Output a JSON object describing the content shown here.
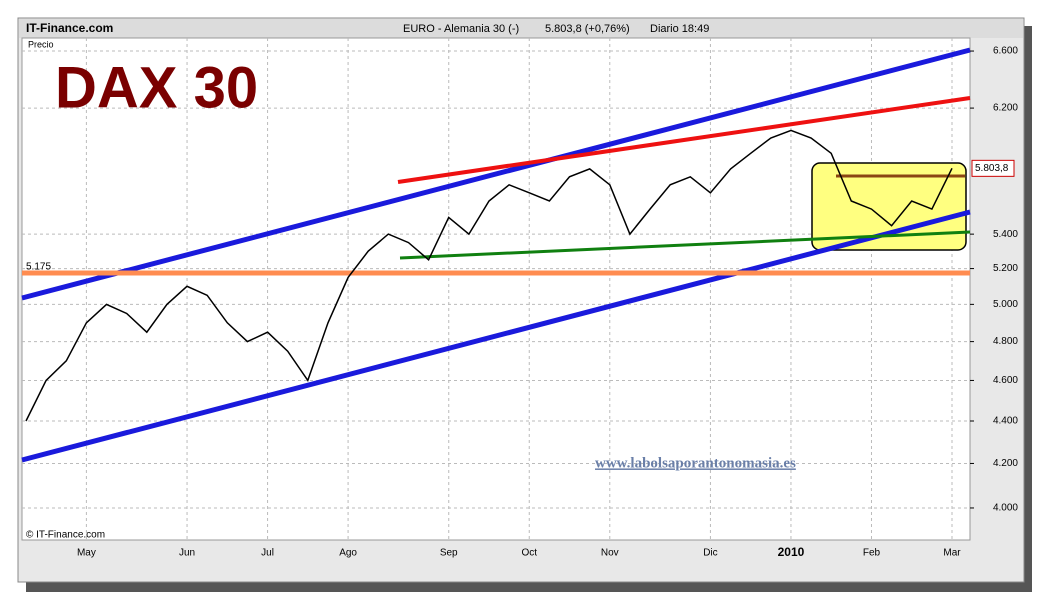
{
  "header": {
    "site": "IT-Finance.com",
    "quote": [
      "EURO - Alemania 30 (-)",
      "5.803,8 (+0,76%)",
      "Diario  18:49"
    ]
  },
  "chart_data": {
    "type": "line",
    "title": "DAX 30",
    "y_label": "Precio",
    "credit": "© IT-Finance.com",
    "watermark": "www.labolsaporantonomasia.es",
    "categories": [
      null,
      null,
      null,
      "May",
      null,
      null,
      null,
      null,
      "Jun",
      null,
      null,
      null,
      "Jul",
      null,
      null,
      null,
      "Ago",
      null,
      null,
      null,
      null,
      "Sep",
      null,
      null,
      null,
      "Oct",
      null,
      null,
      null,
      "Nov",
      null,
      null,
      null,
      null,
      "Dic",
      null,
      null,
      null,
      "2010",
      null,
      null,
      null,
      "Feb",
      null,
      null,
      null,
      "Mar"
    ],
    "values": [
      4400,
      4600,
      4700,
      4900,
      5000,
      4950,
      4850,
      5000,
      5100,
      5050,
      4900,
      4800,
      4850,
      4750,
      4600,
      4900,
      5150,
      5300,
      5400,
      5350,
      5250,
      5500,
      5400,
      5600,
      5700,
      5650,
      5600,
      5750,
      5800,
      5700,
      5400,
      5550,
      5700,
      5750,
      5650,
      5800,
      5900,
      6000,
      6050,
      6000,
      5900,
      5600,
      5550,
      5450,
      5600,
      5550,
      5803.8
    ],
    "color": "#000000",
    "log_scale": true,
    "grid": true,
    "ylim": [
      3862,
      6695
    ],
    "yticks": [
      {
        "value": 4000,
        "label": "4.000"
      },
      {
        "value": 4200,
        "label": "4.200"
      },
      {
        "value": 4400,
        "label": "4.400"
      },
      {
        "value": 4600,
        "label": "4.600"
      },
      {
        "value": 4800,
        "label": "4.800"
      },
      {
        "value": 5000,
        "label": "5.000"
      },
      {
        "value": 5200,
        "label": "5.200"
      },
      {
        "value": 5400,
        "label": "5.400"
      },
      {
        "value": 6200,
        "label": "6.200"
      },
      {
        "value": 6600,
        "label": "6.600"
      }
    ],
    "last_price": {
      "value": 5803.8,
      "label": "5.803,8"
    },
    "support_level": {
      "value": 5175,
      "label": "5.175"
    }
  }
}
